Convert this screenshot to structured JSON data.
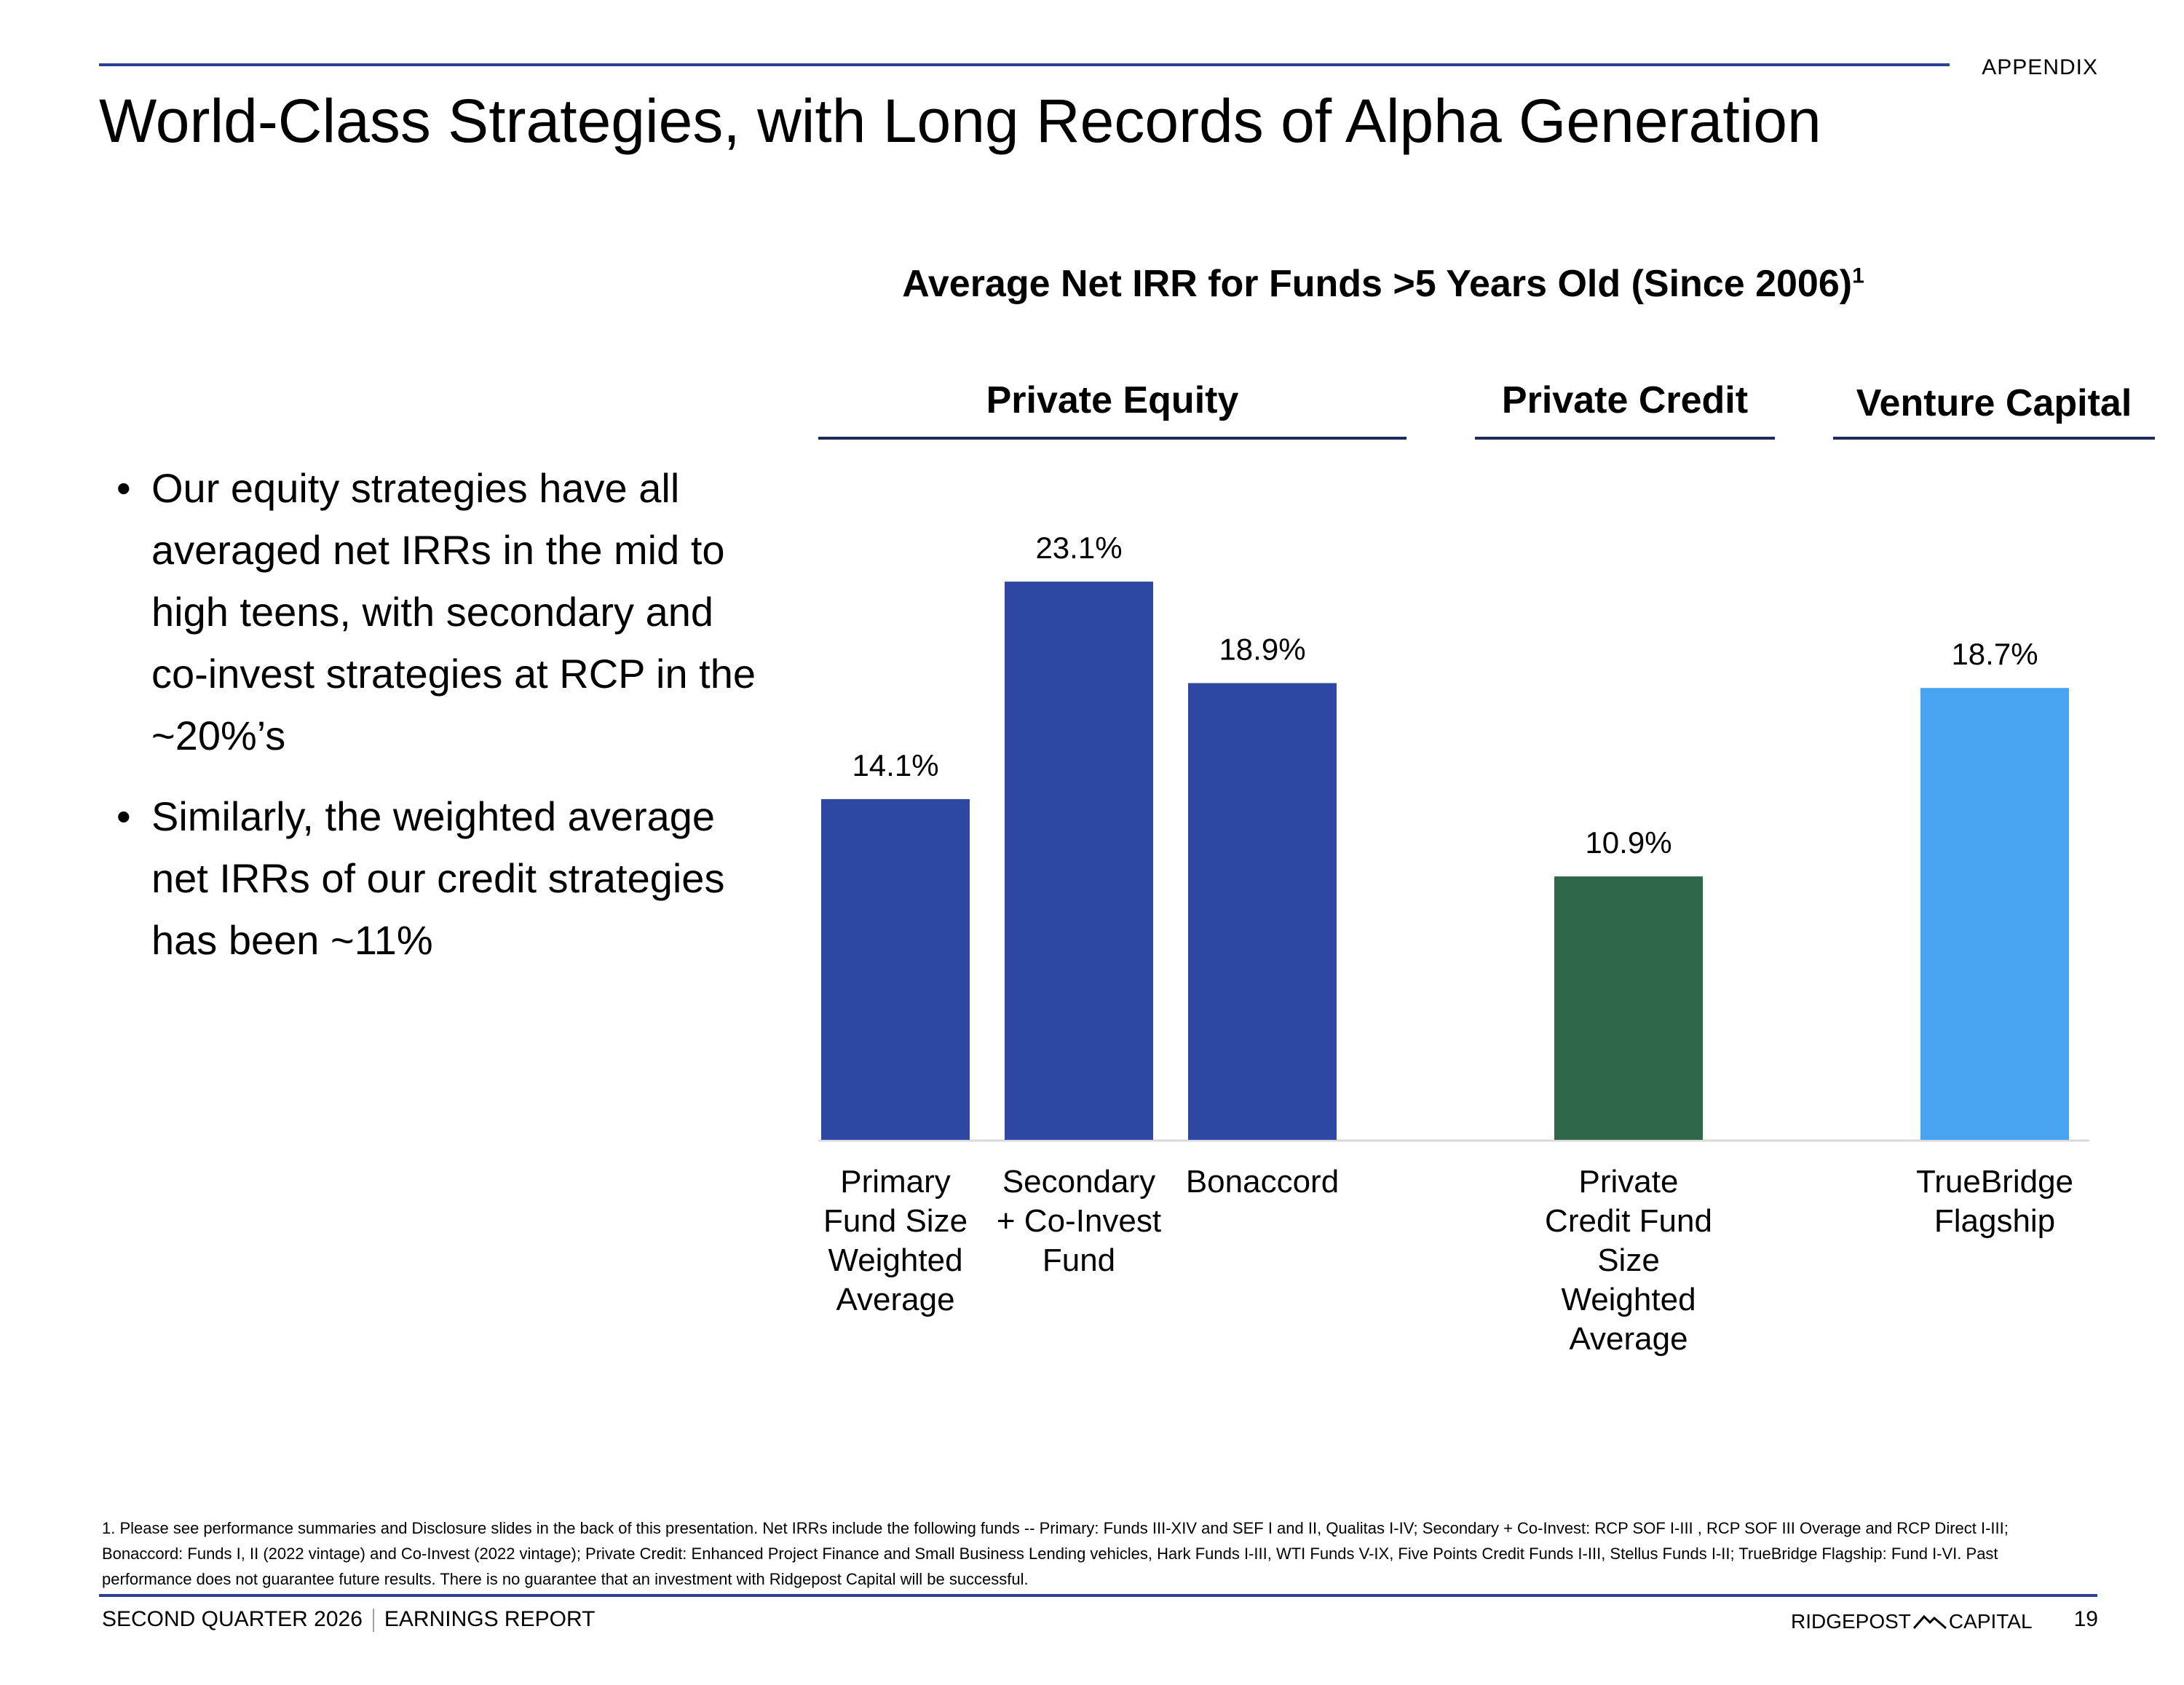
{
  "header": {
    "section_tag": "APPENDIX",
    "title": "World-Class Strategies, with Long Records of Alpha Generation"
  },
  "bullets": [
    "Our equity strategies have all averaged net IRRs in the mid to high teens, with secondary and co-invest strategies at RCP in the ~20%’s",
    "Similarly, the weighted average net IRRs of our credit strategies has been ~11%"
  ],
  "chart_data": {
    "type": "bar",
    "title": "Average Net IRR for Funds >5 Years Old (Since 2006)",
    "title_footnote_ref": "1",
    "groups": [
      {
        "label": "Private Equity",
        "categories": [
          0,
          1,
          2
        ]
      },
      {
        "label": "Private Credit",
        "categories": [
          3
        ]
      },
      {
        "label": "Venture Capital",
        "categories": [
          4
        ]
      }
    ],
    "categories": [
      "Primary Fund Size Weighted Average",
      "Secondary + Co-Invest Fund",
      "Bonaccord",
      "Private Credit Fund Size Weighted Average",
      "TrueBridge Flagship"
    ],
    "category_label_lines": [
      [
        "Primary",
        "Fund Size",
        "Weighted",
        "Average"
      ],
      [
        "Secondary",
        "+ Co-Invest",
        "Fund"
      ],
      [
        "Bonaccord"
      ],
      [
        "Private",
        "Credit Fund",
        "Size",
        "Weighted",
        "Average"
      ],
      [
        "TrueBridge",
        "Flagship"
      ]
    ],
    "values": [
      14.1,
      23.1,
      18.9,
      10.9,
      18.7
    ],
    "data_labels": [
      "14.1%",
      "23.1%",
      "18.9%",
      "10.9%",
      "18.7%"
    ],
    "colors": [
      "#2d47a3",
      "#2d47a3",
      "#2d47a3",
      "#2e674a",
      "#48a4f0"
    ],
    "unit": "%",
    "ylim": [
      0,
      30
    ],
    "grid": false,
    "legend": "none"
  },
  "footnote": "1. Please see performance summaries and Disclosure slides in the back of this presentation. Net IRRs include the following funds -- Primary: Funds III-XIV and SEF I and II, Qualitas I-IV; Secondary + Co-Invest: RCP SOF I-III , RCP SOF III Overage and RCP Direct I-III; Bonaccord: Funds I, II (2022 vintage) and Co-Invest (2022 vintage); Private Credit: Enhanced Project Finance and Small Business Lending vehicles, Hark Funds I-III, WTI Funds V-IX, Five Points Credit Funds I-III, Stellus Funds I-II; TrueBridge Flagship: Fund I-VI.  Past performance does not guarantee future results. There is no guarantee that an investment with Ridgepost Capital will be successful.",
  "footer": {
    "period": "SECOND QUARTER 2026",
    "report": "EARNINGS REPORT",
    "brand_left": "RIDGEPOST",
    "brand_right": "CAPITAL",
    "page_number": "19"
  }
}
